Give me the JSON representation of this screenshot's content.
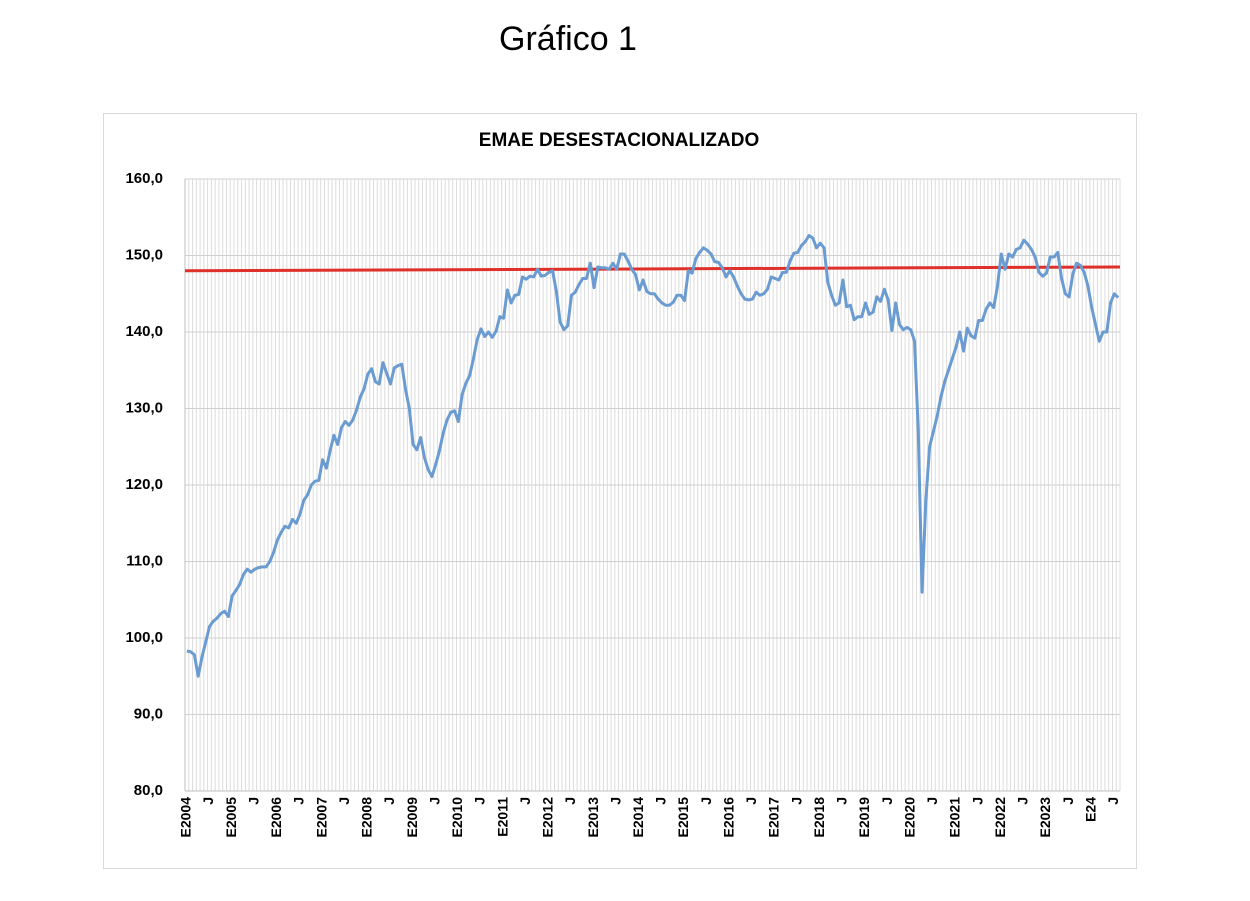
{
  "page_title": "Gráfico 1",
  "chart_data": {
    "type": "line",
    "title": "EMAE DESESTACIONALIZADO",
    "categories": [
      "E2004",
      null,
      null,
      null,
      null,
      null,
      "J",
      null,
      null,
      null,
      null,
      null,
      "E2005",
      null,
      null,
      null,
      null,
      null,
      "J",
      null,
      null,
      null,
      null,
      null,
      "E2006",
      null,
      null,
      null,
      null,
      null,
      "J",
      null,
      null,
      null,
      null,
      null,
      "E2007",
      null,
      null,
      null,
      null,
      null,
      "J",
      null,
      null,
      null,
      null,
      null,
      "E2008",
      null,
      null,
      null,
      null,
      null,
      "J",
      null,
      null,
      null,
      null,
      null,
      "E2009",
      null,
      null,
      null,
      null,
      null,
      "J",
      null,
      null,
      null,
      null,
      null,
      "E2010",
      null,
      null,
      null,
      null,
      null,
      "J",
      null,
      null,
      null,
      null,
      null,
      "E2011",
      null,
      null,
      null,
      null,
      null,
      "J",
      null,
      null,
      null,
      null,
      null,
      "E2012",
      null,
      null,
      null,
      null,
      null,
      "J",
      null,
      null,
      null,
      null,
      null,
      "E2013",
      null,
      null,
      null,
      null,
      null,
      "J",
      null,
      null,
      null,
      null,
      null,
      "E2014",
      null,
      null,
      null,
      null,
      null,
      "J",
      null,
      null,
      null,
      null,
      null,
      "E2015",
      null,
      null,
      null,
      null,
      null,
      "J",
      null,
      null,
      null,
      null,
      null,
      "E2016",
      null,
      null,
      null,
      null,
      null,
      "J",
      null,
      null,
      null,
      null,
      null,
      "E2017",
      null,
      null,
      null,
      null,
      null,
      "J",
      null,
      null,
      null,
      null,
      null,
      "E2018",
      null,
      null,
      null,
      null,
      null,
      "J",
      null,
      null,
      null,
      null,
      null,
      "E2019",
      null,
      null,
      null,
      null,
      null,
      "J",
      null,
      null,
      null,
      null,
      null,
      "E2020",
      null,
      null,
      null,
      null,
      null,
      "J",
      null,
      null,
      null,
      null,
      null,
      "E2021",
      null,
      null,
      null,
      null,
      null,
      "J",
      null,
      null,
      null,
      null,
      null,
      "E2022",
      null,
      null,
      null,
      null,
      null,
      "J",
      null,
      null,
      null,
      null,
      null,
      "E2023",
      null,
      null,
      null,
      null,
      null,
      "J",
      null,
      null,
      null,
      null,
      null,
      "E24",
      null,
      null,
      null,
      null,
      null,
      "J",
      null
    ],
    "color": "#6a9bd1",
    "values": [
      98.3,
      98.2,
      97.8,
      95.0,
      97.5,
      99.5,
      101.5,
      102.2,
      102.6,
      103.2,
      103.5,
      102.8,
      105.5,
      106.2,
      107.0,
      108.3,
      109.0,
      108.6,
      109.0,
      109.2,
      109.3,
      109.3,
      110.0,
      111.2,
      112.8,
      113.8,
      114.6,
      114.4,
      115.5,
      115.0,
      116.2,
      118.0,
      118.7,
      120.0,
      120.5,
      120.6,
      123.3,
      122.2,
      124.5,
      126.5,
      125.3,
      127.5,
      128.3,
      127.8,
      128.5,
      129.8,
      131.5,
      132.6,
      134.5,
      135.2,
      133.5,
      133.2,
      136.0,
      134.6,
      133.2,
      135.3,
      135.6,
      135.8,
      132.5,
      130.0,
      125.3,
      124.6,
      126.2,
      123.6,
      122.0,
      121.1,
      122.7,
      124.5,
      126.8,
      128.5,
      129.5,
      129.7,
      128.3,
      131.8,
      133.3,
      134.3,
      136.5,
      139.0,
      140.4,
      139.4,
      140.0,
      139.3,
      140.1,
      142.0,
      141.8,
      145.5,
      143.8,
      144.8,
      144.9,
      147.2,
      146.9,
      147.3,
      147.2,
      148.2,
      147.3,
      147.4,
      147.8,
      148.0,
      145.3,
      141.3,
      140.3,
      140.8,
      144.8,
      145.2,
      146.2,
      147.0,
      147.0,
      149.0,
      145.8,
      148.5,
      148.4,
      148.4,
      148.2,
      149.0,
      148.2,
      150.2,
      150.2,
      149.3,
      148.2,
      147.5,
      145.5,
      146.8,
      145.3,
      145.0,
      145.0,
      144.3,
      143.8,
      143.5,
      143.5,
      143.9,
      144.8,
      144.8,
      144.1,
      148.0,
      147.7,
      149.6,
      150.4,
      151.0,
      150.7,
      150.2,
      149.2,
      149.1,
      148.4,
      147.2,
      148.0,
      147.2,
      146.0,
      145.0,
      144.3,
      144.2,
      144.3,
      145.2,
      144.8,
      145.0,
      145.6,
      147.2,
      147.0,
      146.8,
      147.8,
      147.8,
      149.3,
      150.3,
      150.4,
      151.3,
      151.8,
      152.6,
      152.3,
      151.0,
      151.6,
      151.0,
      146.5,
      144.8,
      143.5,
      143.8,
      146.8,
      143.3,
      143.5,
      141.6,
      142.0,
      142.0,
      143.8,
      142.3,
      142.6,
      144.6,
      144.0,
      145.6,
      144.2,
      140.2,
      143.8,
      141.0,
      140.3,
      140.6,
      140.3,
      138.8,
      127.0,
      106.0,
      118.0,
      125.0,
      127.0,
      129.0,
      131.5,
      133.5,
      135.0,
      136.5,
      138.0,
      140.0,
      137.5,
      140.5,
      139.5,
      139.2,
      141.5,
      141.5,
      143.0,
      143.8,
      143.2,
      146.0,
      150.2,
      148.2,
      150.2,
      149.8,
      150.8,
      151.0,
      152.0,
      151.5,
      150.8,
      149.8,
      147.8,
      147.3,
      147.7,
      149.8,
      149.8,
      150.4,
      147.0,
      145.0,
      144.6,
      147.6,
      149.0,
      148.7,
      147.8,
      146.0,
      143.2,
      141.0,
      138.8,
      140.0,
      140.0,
      143.8,
      145.0,
      144.5
    ],
    "trend_line": {
      "color": "#e0302a",
      "values": [
        148.0,
        148.5
      ]
    },
    "ylim": [
      80,
      160
    ],
    "yticks": [
      {
        "value": 80,
        "label": "80,0"
      },
      {
        "value": 90,
        "label": "90,0"
      },
      {
        "value": 100,
        "label": "100,0"
      },
      {
        "value": 110,
        "label": "110,0"
      },
      {
        "value": 120,
        "label": "120,0"
      },
      {
        "value": 130,
        "label": "130,0"
      },
      {
        "value": 140,
        "label": "140,0"
      },
      {
        "value": 150,
        "label": "150,0"
      },
      {
        "value": 160,
        "label": "160,0"
      }
    ],
    "grid": true
  }
}
